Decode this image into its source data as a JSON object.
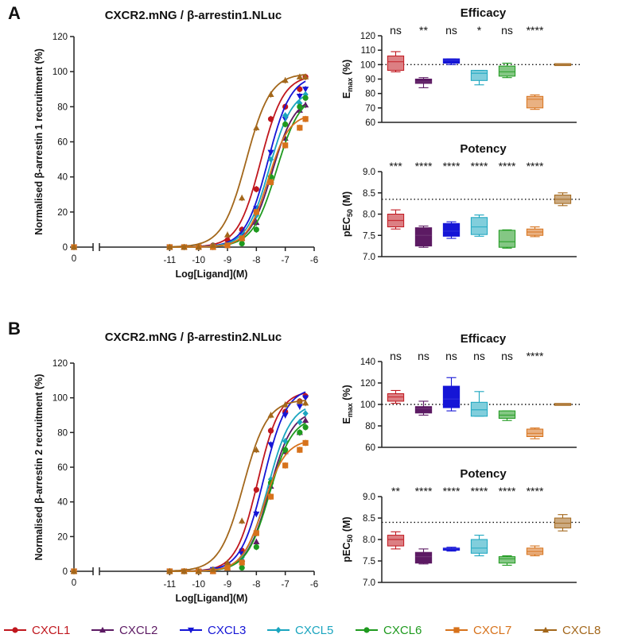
{
  "figure": {
    "panel_labels": [
      "A",
      "B"
    ],
    "titles": [
      "CXCR2.mNG / β-arrestin1.NLuc",
      "CXCR2.mNG / β-arrestin2.NLuc"
    ]
  },
  "legend": [
    {
      "name": "CXCL1",
      "color": "#c0171e",
      "marker": "circle"
    },
    {
      "name": "CXCL2",
      "color": "#5c1a63",
      "marker": "triangle"
    },
    {
      "name": "CXCL3",
      "color": "#1515d6",
      "marker": "triangle-down"
    },
    {
      "name": "CXCL5",
      "color": "#1aa5bf",
      "marker": "diamond"
    },
    {
      "name": "CXCL6",
      "color": "#1f9a1f",
      "marker": "circle"
    },
    {
      "name": "CXCL7",
      "color": "#d7721b",
      "marker": "square"
    },
    {
      "name": "CXCL8",
      "color": "#a3671b",
      "marker": "triangle"
    }
  ],
  "chart_data": [
    {
      "id": "A-curve",
      "type": "line",
      "title": "CXCR2.mNG / β-arrestin1.NLuc",
      "xlabel": "Log[Ligand](M)",
      "ylabel": "Normalised β-arrestin 1 recruitment (%)",
      "ylim": [
        0,
        120
      ],
      "yticks": [
        0,
        20,
        40,
        60,
        80,
        100,
        120
      ],
      "xlim": [
        -12,
        -6
      ],
      "xticks": [
        -11,
        -10,
        -9,
        -8,
        -7,
        -6
      ],
      "x_break_tick": "0",
      "x": [
        -11,
        -10.5,
        -10,
        -9.5,
        -9,
        -8.5,
        -8,
        -7.5,
        -7,
        -6.5,
        -6.3
      ],
      "series": [
        {
          "name": "CXCL1",
          "logEC50": -7.85,
          "top": 98,
          "hill": 1.1,
          "values": [
            0,
            0,
            0,
            1,
            4,
            10,
            33,
            73,
            80,
            90,
            97
          ]
        },
        {
          "name": "CXCL2",
          "logEC50": -7.45,
          "top": 86,
          "hill": 1.1,
          "values": [
            0,
            0,
            0,
            0,
            1,
            5,
            14,
            38,
            62,
            78,
            81
          ]
        },
        {
          "name": "CXCL3",
          "logEC50": -7.6,
          "top": 98,
          "hill": 1.1,
          "values": [
            0,
            0,
            0,
            0,
            1,
            7,
            22,
            54,
            73,
            86,
            90
          ]
        },
        {
          "name": "CXCL5",
          "logEC50": -7.55,
          "top": 90,
          "hill": 1.1,
          "values": [
            0,
            0,
            0,
            1,
            1,
            5,
            18,
            50,
            75,
            82,
            87
          ]
        },
        {
          "name": "CXCL6",
          "logEC50": -7.3,
          "top": 88,
          "hill": 1.05,
          "values": [
            0,
            0,
            0,
            0,
            1,
            2,
            10,
            40,
            70,
            80,
            85
          ]
        },
        {
          "name": "CXCL7",
          "logEC50": -7.6,
          "top": 76,
          "hill": 1.2,
          "values": [
            0,
            0,
            0,
            0,
            1,
            5,
            20,
            37,
            58,
            68,
            73
          ]
        },
        {
          "name": "CXCL8",
          "logEC50": -8.35,
          "top": 99,
          "hill": 1.05,
          "values": [
            0,
            0,
            0,
            1,
            7,
            28,
            68,
            87,
            95,
            97,
            97
          ]
        }
      ]
    },
    {
      "id": "A-efficacy",
      "type": "box",
      "title": "Efficacy",
      "ylabel": "Emax (%)",
      "ylim": [
        60,
        120
      ],
      "yticks": [
        60,
        70,
        80,
        90,
        100,
        110,
        120
      ],
      "reference_line": 100,
      "categories": [
        "CXCL1",
        "CXCL2",
        "CXCL3",
        "CXCL5",
        "CXCL6",
        "CXCL7",
        "CXCL8"
      ],
      "significance": [
        "ns",
        "**",
        "ns",
        "*",
        "ns",
        "****",
        ""
      ],
      "boxes": [
        {
          "min": 95,
          "q1": 96,
          "median": 102,
          "q3": 106,
          "max": 109
        },
        {
          "min": 84,
          "q1": 87,
          "median": 88,
          "q3": 90,
          "max": 91
        },
        {
          "min": 100,
          "q1": 101,
          "median": 103,
          "q3": 104,
          "max": 104
        },
        {
          "min": 86,
          "q1": 89,
          "median": 94,
          "q3": 96,
          "max": 96
        },
        {
          "min": 91,
          "q1": 92,
          "median": 95,
          "q3": 99,
          "max": 101
        },
        {
          "min": 69,
          "q1": 70,
          "median": 76,
          "q3": 78,
          "max": 79
        },
        {
          "min": 100,
          "q1": 100,
          "median": 100,
          "q3": 100,
          "max": 100
        }
      ]
    },
    {
      "id": "A-potency",
      "type": "box",
      "title": "Potency",
      "ylabel": "pEC50 (M)",
      "ylim": [
        7.0,
        9.0
      ],
      "yticks": [
        "7.0",
        "7.5",
        "8.0",
        "8.5",
        "9.0"
      ],
      "reference_line": 8.35,
      "categories": [
        "CXCL1",
        "CXCL2",
        "CXCL3",
        "CXCL5",
        "CXCL6",
        "CXCL7",
        "CXCL8"
      ],
      "significance": [
        "***",
        "****",
        "****",
        "****",
        "****",
        "****",
        ""
      ],
      "boxes": [
        {
          "min": 7.65,
          "q1": 7.7,
          "median": 7.85,
          "q3": 8.0,
          "max": 8.1
        },
        {
          "min": 7.22,
          "q1": 7.25,
          "median": 7.5,
          "q3": 7.68,
          "max": 7.72
        },
        {
          "min": 7.43,
          "q1": 7.48,
          "median": 7.6,
          "q3": 7.78,
          "max": 7.82
        },
        {
          "min": 7.48,
          "q1": 7.52,
          "median": 7.7,
          "q3": 7.92,
          "max": 7.98
        },
        {
          "min": 7.2,
          "q1": 7.22,
          "median": 7.35,
          "q3": 7.62,
          "max": 7.63
        },
        {
          "min": 7.47,
          "q1": 7.5,
          "median": 7.58,
          "q3": 7.65,
          "max": 7.7
        },
        {
          "min": 8.2,
          "q1": 8.25,
          "median": 8.35,
          "q3": 8.45,
          "max": 8.5
        }
      ]
    },
    {
      "id": "B-curve",
      "type": "line",
      "title": "CXCR2.mNG / β-arrestin2.NLuc",
      "xlabel": "Log[Ligand](M)",
      "ylabel": "Normalised β-arrestin 2 recruitment (%)",
      "ylim": [
        0,
        120
      ],
      "yticks": [
        0,
        20,
        40,
        60,
        80,
        100,
        120
      ],
      "xlim": [
        -12,
        -6
      ],
      "xticks": [
        -11,
        -10,
        -9,
        -8,
        -7,
        -6
      ],
      "x_break_tick": "0",
      "x": [
        -11,
        -10.5,
        -10,
        -9.5,
        -9,
        -8.5,
        -8,
        -7.5,
        -7,
        -6.5,
        -6.3
      ],
      "series": [
        {
          "name": "CXCL1",
          "logEC50": -7.95,
          "top": 104,
          "hill": 1.15,
          "values": [
            0,
            0,
            0,
            1,
            4,
            12,
            47,
            81,
            92,
            98,
            101
          ]
        },
        {
          "name": "CXCL2",
          "logEC50": -7.55,
          "top": 93,
          "hill": 1.1,
          "values": [
            0,
            0,
            0,
            0,
            2,
            7,
            17,
            49,
            69,
            80,
            87
          ]
        },
        {
          "name": "CXCL3",
          "logEC50": -7.75,
          "top": 106,
          "hill": 1.1,
          "values": [
            0,
            0,
            0,
            1,
            3,
            10,
            33,
            73,
            90,
            95,
            100
          ]
        },
        {
          "name": "CXCL5",
          "logEC50": -7.6,
          "top": 97,
          "hill": 1.1,
          "values": [
            0,
            0,
            0,
            1,
            2,
            8,
            22,
            53,
            75,
            86,
            91
          ]
        },
        {
          "name": "CXCL6",
          "logEC50": -7.55,
          "top": 89,
          "hill": 1.1,
          "values": [
            0,
            0,
            0,
            0,
            2,
            2,
            14,
            51,
            70,
            80,
            83
          ]
        },
        {
          "name": "CXCL7",
          "logEC50": -7.75,
          "top": 76,
          "hill": 1.15,
          "values": [
            0,
            0,
            0,
            0,
            2,
            5,
            22,
            43,
            61,
            70,
            74
          ]
        },
        {
          "name": "CXCL8",
          "logEC50": -8.45,
          "top": 99,
          "hill": 1.05,
          "values": [
            0,
            0,
            0,
            1,
            5,
            29,
            70,
            90,
            96,
            98,
            97
          ]
        }
      ]
    },
    {
      "id": "B-efficacy",
      "type": "box",
      "title": "Efficacy",
      "ylabel": "Emax (%)",
      "ylim": [
        60,
        140
      ],
      "yticks": [
        60,
        80,
        100,
        120,
        140
      ],
      "reference_line": 100,
      "categories": [
        "CXCL1",
        "CXCL2",
        "CXCL3",
        "CXCL5",
        "CXCL6",
        "CXCL7",
        "CXCL8"
      ],
      "significance": [
        "ns",
        "ns",
        "ns",
        "ns",
        "ns",
        "****",
        ""
      ],
      "boxes": [
        {
          "min": 101,
          "q1": 103,
          "median": 107,
          "q3": 110,
          "max": 113
        },
        {
          "min": 90,
          "q1": 92,
          "median": 96,
          "q3": 98,
          "max": 103
        },
        {
          "min": 94,
          "q1": 97,
          "median": 105,
          "q3": 117,
          "max": 125
        },
        {
          "min": 89,
          "q1": 89,
          "median": 95,
          "q3": 102,
          "max": 112
        },
        {
          "min": 85,
          "q1": 87,
          "median": 90,
          "q3": 94,
          "max": 94
        },
        {
          "min": 68,
          "q1": 70,
          "median": 73,
          "q3": 77,
          "max": 78
        },
        {
          "min": 100,
          "q1": 100,
          "median": 100,
          "q3": 100,
          "max": 100
        }
      ]
    },
    {
      "id": "B-potency",
      "type": "box",
      "title": "Potency",
      "ylabel": "pEC50 (M)",
      "ylim": [
        7.0,
        9.0
      ],
      "yticks": [
        "7.0",
        "7.5",
        "8.0",
        "8.5",
        "9.0"
      ],
      "reference_line": 8.4,
      "categories": [
        "CXCL1",
        "CXCL2",
        "CXCL3",
        "CXCL5",
        "CXCL6",
        "CXCL7",
        "CXCL8"
      ],
      "significance": [
        "**",
        "****",
        "****",
        "****",
        "****",
        "****",
        ""
      ],
      "boxes": [
        {
          "min": 7.78,
          "q1": 7.85,
          "median": 8.0,
          "q3": 8.1,
          "max": 8.18
        },
        {
          "min": 7.43,
          "q1": 7.45,
          "median": 7.6,
          "q3": 7.7,
          "max": 7.78
        },
        {
          "min": 7.73,
          "q1": 7.75,
          "median": 7.78,
          "q3": 7.8,
          "max": 7.82
        },
        {
          "min": 7.62,
          "q1": 7.68,
          "median": 7.8,
          "q3": 8.0,
          "max": 8.1
        },
        {
          "min": 7.4,
          "q1": 7.45,
          "median": 7.55,
          "q3": 7.6,
          "max": 7.62
        },
        {
          "min": 7.62,
          "q1": 7.65,
          "median": 7.72,
          "q3": 7.8,
          "max": 7.85
        },
        {
          "min": 8.2,
          "q1": 8.27,
          "median": 8.38,
          "q3": 8.5,
          "max": 8.58
        }
      ]
    }
  ]
}
